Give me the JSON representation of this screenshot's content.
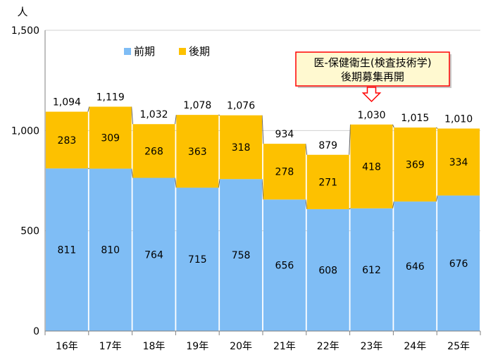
{
  "chart_data": {
    "type": "bar",
    "stacked": true,
    "unit_label": "人",
    "categories": [
      "16年",
      "17年",
      "18年",
      "19年",
      "20年",
      "21年",
      "22年",
      "23年",
      "24年",
      "25年"
    ],
    "series": [
      {
        "name": "前期",
        "color": "#7fbdf5",
        "values": [
          811,
          810,
          764,
          715,
          758,
          656,
          608,
          612,
          646,
          676
        ]
      },
      {
        "name": "後期",
        "color": "#fdc100",
        "values": [
          283,
          309,
          268,
          363,
          318,
          278,
          271,
          418,
          369,
          334
        ]
      }
    ],
    "totals": [
      1094,
      1119,
      1032,
      1078,
      1076,
      934,
      879,
      1030,
      1015,
      1010
    ],
    "y_ticks": [
      "0",
      "500",
      "1,000",
      "1,500"
    ],
    "ylim": [
      0,
      1500
    ],
    "legend_position": "top-left",
    "annotation": {
      "lines": [
        "医-保健衛生(検査技術学)",
        "後期募集再開"
      ],
      "target_category": "23年",
      "border_color": "#ff0000"
    }
  }
}
